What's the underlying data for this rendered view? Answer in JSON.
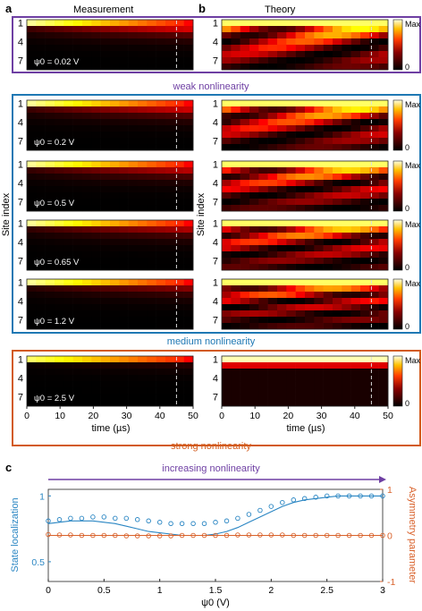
{
  "panel_labels": {
    "a": "a",
    "b": "b",
    "c": "c"
  },
  "columns": {
    "measurement": "Measurement",
    "theory": "Theory"
  },
  "regimes": {
    "weak": "weak nonlinearity",
    "medium": "medium nonlinearity",
    "strong": "strong nonlinearity"
  },
  "colors": {
    "weak": "#6e3fa3",
    "medium": "#1f78b4",
    "strong": "#d25a1c",
    "localization": "#2a86c3",
    "asymmetry": "#d9622b"
  },
  "colorbar": {
    "max_label": "Max",
    "min_label": "0"
  },
  "heatmap_axes": {
    "site_label": "Site index",
    "site_ticks": [
      "1",
      "4",
      "7"
    ],
    "time_label": "time (µs)",
    "time_ticks": [
      "0",
      "10",
      "20",
      "30",
      "40",
      "50"
    ],
    "dashed_time": 45
  },
  "rows": [
    {
      "psi_label": "ψ0 = 0.02 V",
      "psi": 0.02,
      "regime": "weak"
    },
    {
      "psi_label": "ψ0 = 0.2 V",
      "psi": 0.2,
      "regime": "medium"
    },
    {
      "psi_label": "ψ0 = 0.5 V",
      "psi": 0.5,
      "regime": "medium"
    },
    {
      "psi_label": "ψ0 = 0.65 V",
      "psi": 0.65,
      "regime": "medium"
    },
    {
      "psi_label": "ψ0 = 1.2 V",
      "psi": 1.2,
      "regime": "medium"
    },
    {
      "psi_label": "ψ0 = 2.5 V",
      "psi": 2.5,
      "regime": "strong"
    }
  ],
  "panel_c": {
    "arrow_label": "increasing nonlinearity",
    "xlabel": "ψ0 (V)",
    "ylabel_left": "State localization",
    "ylabel_right": "Asymmetry parameter",
    "xticks": [
      "0",
      "0.5",
      "1",
      "1.5",
      "2",
      "2.5",
      "3"
    ],
    "yticks_left": [
      "0.5",
      "1"
    ],
    "yticks_right": [
      "-1",
      "0",
      "1"
    ]
  },
  "chart_data": {
    "type": "scatter",
    "x": [
      0.0,
      0.1,
      0.2,
      0.3,
      0.4,
      0.5,
      0.6,
      0.7,
      0.8,
      0.9,
      1.0,
      1.1,
      1.2,
      1.3,
      1.4,
      1.5,
      1.6,
      1.7,
      1.8,
      1.9,
      2.0,
      2.1,
      2.2,
      2.3,
      2.4,
      2.5,
      2.6,
      2.7,
      2.8,
      2.9,
      3.0
    ],
    "xlim": [
      0,
      3
    ],
    "ylim_left": [
      0.35,
      1.05
    ],
    "ylim_right": [
      -1,
      1
    ],
    "series": [
      {
        "name": "State localization (measurement)",
        "axis": "left",
        "style": "circles",
        "values": [
          0.81,
          0.82,
          0.83,
          0.83,
          0.84,
          0.84,
          0.83,
          0.83,
          0.82,
          0.81,
          0.8,
          0.79,
          0.79,
          0.79,
          0.79,
          0.8,
          0.81,
          0.83,
          0.86,
          0.89,
          0.92,
          0.95,
          0.97,
          0.98,
          0.99,
          1.0,
          1.0,
          1.0,
          1.0,
          1.0,
          1.0
        ]
      },
      {
        "name": "State localization (theory)",
        "axis": "left",
        "style": "line",
        "values": [
          0.79,
          0.8,
          0.81,
          0.81,
          0.81,
          0.8,
          0.79,
          0.77,
          0.75,
          0.73,
          0.72,
          0.71,
          0.7,
          0.7,
          0.7,
          0.71,
          0.73,
          0.76,
          0.8,
          0.84,
          0.88,
          0.92,
          0.95,
          0.97,
          0.98,
          0.99,
          1.0,
          1.0,
          1.0,
          1.0,
          1.0
        ]
      },
      {
        "name": "Asymmetry parameter (measurement)",
        "axis": "right",
        "style": "circles",
        "values": [
          0.02,
          0.01,
          0.01,
          0.0,
          0.0,
          0.0,
          0.0,
          -0.01,
          -0.01,
          -0.01,
          -0.01,
          -0.01,
          0.0,
          0.0,
          0.0,
          0.0,
          0.0,
          0.01,
          0.01,
          0.01,
          0.01,
          0.01,
          0.0,
          0.0,
          0.0,
          0.0,
          0.0,
          0.0,
          0.0,
          0.0,
          0.0
        ]
      },
      {
        "name": "Asymmetry parameter (theory)",
        "axis": "right",
        "style": "line",
        "values": [
          0.0,
          0.0,
          0.0,
          0.0,
          0.0,
          0.0,
          0.0,
          0.0,
          0.0,
          0.0,
          0.0,
          0.0,
          0.0,
          0.0,
          0.0,
          0.0,
          0.0,
          0.0,
          0.0,
          0.0,
          0.0,
          0.0,
          0.0,
          0.0,
          0.0,
          0.0,
          0.0,
          0.0,
          0.0,
          0.0,
          0.0
        ]
      }
    ]
  }
}
